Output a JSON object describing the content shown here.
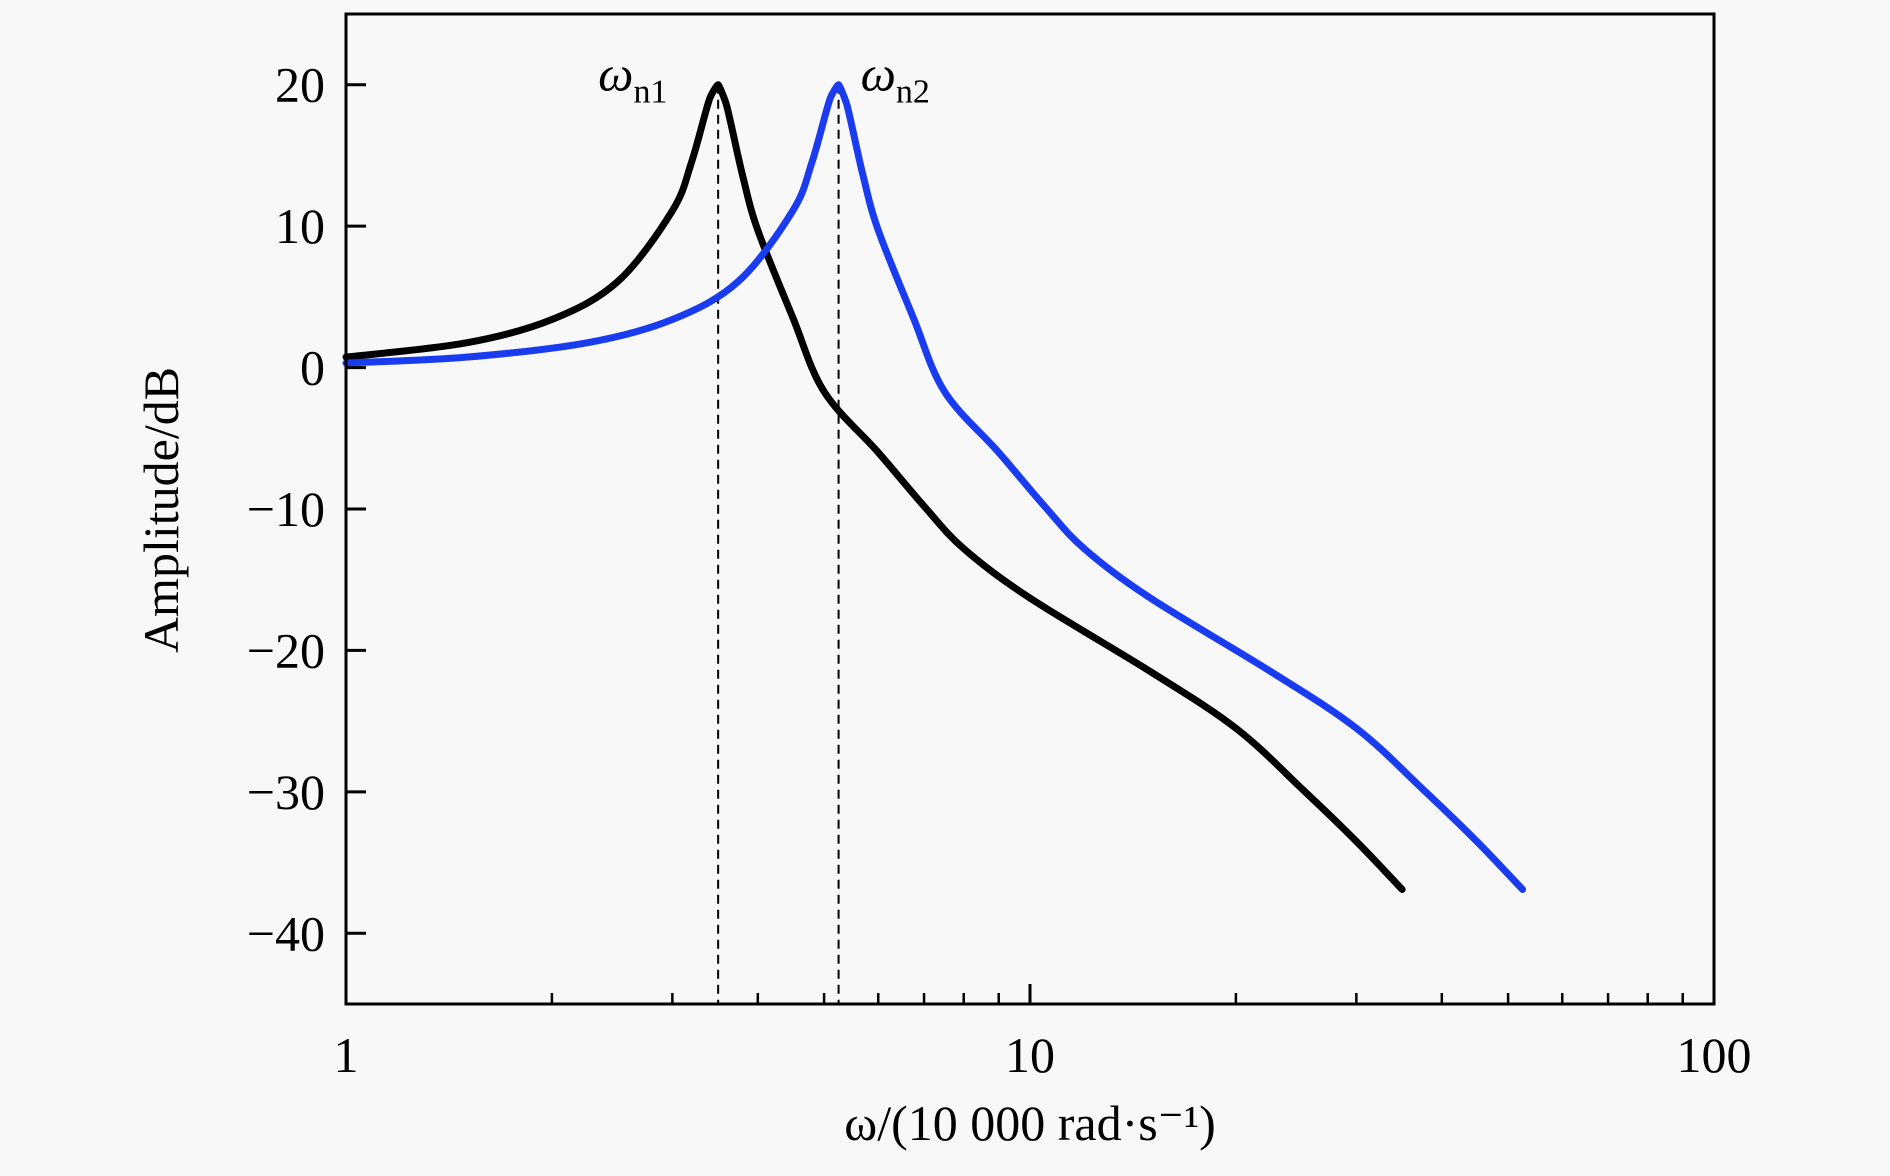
{
  "chart_data": {
    "type": "line",
    "title": "",
    "xlabel": "ω/(10 000 rad·s⁻¹)",
    "ylabel": "Amplitude/dB",
    "xscale": "log",
    "xlim": [
      1,
      100
    ],
    "ylim": [
      -45,
      25
    ],
    "x_ticks": [
      1,
      10,
      100
    ],
    "x_tick_labels": [
      "1",
      "10",
      "100"
    ],
    "y_ticks": [
      20,
      10,
      0,
      -10,
      -20,
      -30,
      -40
    ],
    "y_tick_labels": [
      "20",
      "10",
      "0",
      "−10",
      "−20",
      "−30",
      "−40"
    ],
    "grid": false,
    "series": [
      {
        "color": "#000000",
        "x": [
          1,
          1.5,
          2,
          2.5,
          3,
          3.2,
          3.4,
          3.5,
          3.6,
          3.8,
          4,
          4.5,
          5,
          6,
          7,
          8,
          10,
          15,
          20,
          25,
          30,
          35
        ],
        "y": [
          0.74,
          1.75,
          3.4,
          6.11,
          11.09,
          14.52,
          18.99,
          20,
          18.56,
          13.59,
          9.71,
          3.54,
          -1.7,
          -6,
          -9.8,
          -12.8,
          -16.3,
          -21.5,
          -25.5,
          -29.8,
          -33.5,
          -36.9
        ]
      },
      {
        "color": "#1a3cf0",
        "x": [
          1,
          1.5,
          2.25,
          3,
          3.75,
          4.5,
          4.8,
          5.1,
          5.25,
          5.4,
          5.7,
          6,
          6.75,
          7.5,
          9,
          10.5,
          12,
          15,
          22.5,
          30,
          37.5,
          45,
          52.5
        ],
        "y": [
          0.32,
          0.74,
          1.75,
          3.4,
          6.11,
          11.09,
          14.52,
          18.99,
          20,
          18.56,
          13.59,
          9.71,
          3.54,
          -1.7,
          -6,
          -9.8,
          -12.8,
          -16.3,
          -21.5,
          -25.5,
          -29.8,
          -33.5,
          -36.9
        ]
      }
    ],
    "annotations": [
      {
        "symbol": "ω",
        "sub": "n1",
        "x": 3.5,
        "y": 20
      },
      {
        "symbol": "ω",
        "sub": "n2",
        "x": 5.25,
        "y": 20
      }
    ]
  }
}
